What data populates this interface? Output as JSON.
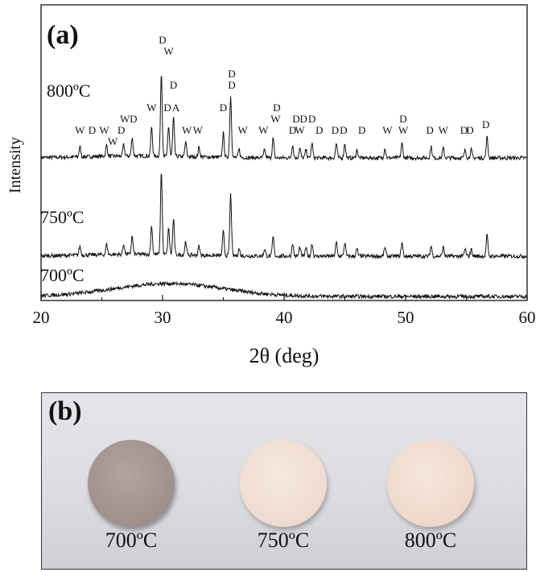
{
  "chart_data": {
    "type": "line",
    "panel_label": "(a)",
    "xlabel": "2θ (deg)",
    "ylabel": "Intensity",
    "xlim": [
      20,
      60
    ],
    "xticks": [
      20,
      30,
      40,
      50,
      60
    ],
    "grid": false,
    "series": [
      {
        "name": "800ºC",
        "peaks": [
          {
            "x": 23.2,
            "h": 0.3
          },
          {
            "x": 25.4,
            "h": 0.35
          },
          {
            "x": 26.8,
            "h": 0.35
          },
          {
            "x": 27.5,
            "h": 0.55
          },
          {
            "x": 29.1,
            "h": 0.9
          },
          {
            "x": 29.9,
            "h": 2.6
          },
          {
            "x": 30.5,
            "h": 0.9
          },
          {
            "x": 30.9,
            "h": 1.2
          },
          {
            "x": 31.9,
            "h": 0.45
          },
          {
            "x": 33.0,
            "h": 0.3
          },
          {
            "x": 35.0,
            "h": 0.75
          },
          {
            "x": 35.6,
            "h": 1.9
          },
          {
            "x": 36.3,
            "h": 0.25
          },
          {
            "x": 38.4,
            "h": 0.25
          },
          {
            "x": 39.1,
            "h": 0.6
          },
          {
            "x": 40.7,
            "h": 0.4
          },
          {
            "x": 41.3,
            "h": 0.3
          },
          {
            "x": 41.8,
            "h": 0.25
          },
          {
            "x": 42.3,
            "h": 0.45
          },
          {
            "x": 44.3,
            "h": 0.45
          },
          {
            "x": 45.0,
            "h": 0.45
          },
          {
            "x": 46.0,
            "h": 0.25
          },
          {
            "x": 48.3,
            "h": 0.3
          },
          {
            "x": 49.7,
            "h": 0.45
          },
          {
            "x": 52.1,
            "h": 0.35
          },
          {
            "x": 53.1,
            "h": 0.3
          },
          {
            "x": 54.9,
            "h": 0.25
          },
          {
            "x": 55.4,
            "h": 0.25
          },
          {
            "x": 56.7,
            "h": 0.65
          }
        ]
      },
      {
        "name": "750ºC",
        "peaks": [
          {
            "x": 23.2,
            "h": 0.28
          },
          {
            "x": 25.4,
            "h": 0.32
          },
          {
            "x": 26.8,
            "h": 0.32
          },
          {
            "x": 27.5,
            "h": 0.55
          },
          {
            "x": 29.1,
            "h": 0.9
          },
          {
            "x": 29.9,
            "h": 2.6
          },
          {
            "x": 30.5,
            "h": 0.8
          },
          {
            "x": 30.9,
            "h": 1.1
          },
          {
            "x": 31.9,
            "h": 0.42
          },
          {
            "x": 33.0,
            "h": 0.28
          },
          {
            "x": 35.0,
            "h": 0.75
          },
          {
            "x": 35.6,
            "h": 1.9
          },
          {
            "x": 36.3,
            "h": 0.22
          },
          {
            "x": 38.4,
            "h": 0.22
          },
          {
            "x": 39.1,
            "h": 0.6
          },
          {
            "x": 40.7,
            "h": 0.4
          },
          {
            "x": 41.3,
            "h": 0.28
          },
          {
            "x": 41.8,
            "h": 0.25
          },
          {
            "x": 42.3,
            "h": 0.4
          },
          {
            "x": 44.3,
            "h": 0.42
          },
          {
            "x": 45.0,
            "h": 0.42
          },
          {
            "x": 46.0,
            "h": 0.22
          },
          {
            "x": 48.3,
            "h": 0.28
          },
          {
            "x": 49.7,
            "h": 0.42
          },
          {
            "x": 52.1,
            "h": 0.32
          },
          {
            "x": 53.1,
            "h": 0.28
          },
          {
            "x": 54.9,
            "h": 0.22
          },
          {
            "x": 55.4,
            "h": 0.22
          },
          {
            "x": 56.7,
            "h": 0.65
          }
        ]
      },
      {
        "name": "700ºC",
        "amorphous_hump": {
          "center": 30.5,
          "width": 4.5,
          "h": 0.4
        }
      }
    ],
    "annotations": [
      {
        "text": "W",
        "x": 23.2,
        "row": 0
      },
      {
        "text": "D",
        "x": 24.2,
        "row": 0
      },
      {
        "text": "W",
        "x": 25.2,
        "row": 0
      },
      {
        "text": "W",
        "x": 25.9,
        "row": -1
      },
      {
        "text": "D",
        "x": 26.6,
        "row": 0
      },
      {
        "text": "W",
        "x": 26.9,
        "row": 1
      },
      {
        "text": "D",
        "x": 27.6,
        "row": 1
      },
      {
        "text": "W",
        "x": 29.1,
        "row": 2
      },
      {
        "text": "D",
        "x": 30.0,
        "row": 8
      },
      {
        "text": "W",
        "x": 30.5,
        "row": 7
      },
      {
        "text": "D",
        "x": 30.9,
        "row": 4
      },
      {
        "text": "D",
        "x": 30.4,
        "row": 2
      },
      {
        "text": "A",
        "x": 31.1,
        "row": 2
      },
      {
        "text": "W",
        "x": 32.0,
        "row": 0
      },
      {
        "text": "W",
        "x": 32.9,
        "row": 0
      },
      {
        "text": "D",
        "x": 35.0,
        "row": 2
      },
      {
        "text": "D",
        "x": 35.7,
        "row": 5
      },
      {
        "text": "D",
        "x": 35.7,
        "row": 4
      },
      {
        "text": "W",
        "x": 36.6,
        "row": 0
      },
      {
        "text": "W",
        "x": 38.3,
        "row": 0
      },
      {
        "text": "D",
        "x": 39.4,
        "row": 2
      },
      {
        "text": "W",
        "x": 39.3,
        "row": 1
      },
      {
        "text": "D",
        "x": 40.7,
        "row": 0
      },
      {
        "text": "W",
        "x": 41.3,
        "row": 0
      },
      {
        "text": "D",
        "x": 41.0,
        "row": 1
      },
      {
        "text": "D",
        "x": 41.6,
        "row": 1
      },
      {
        "text": "D",
        "x": 42.3,
        "row": 1
      },
      {
        "text": "D",
        "x": 42.9,
        "row": 0
      },
      {
        "text": "D",
        "x": 44.2,
        "row": 0
      },
      {
        "text": "D",
        "x": 44.9,
        "row": 0
      },
      {
        "text": "D",
        "x": 46.4,
        "row": 0
      },
      {
        "text": "W",
        "x": 48.5,
        "row": 0
      },
      {
        "text": "W",
        "x": 49.8,
        "row": 0
      },
      {
        "text": "D",
        "x": 49.8,
        "row": 1
      },
      {
        "text": "D",
        "x": 52.0,
        "row": 0
      },
      {
        "text": "W",
        "x": 53.1,
        "row": 0
      },
      {
        "text": "D",
        "x": 54.8,
        "row": 0
      },
      {
        "text": "D",
        "x": 55.3,
        "row": 0
      },
      {
        "text": "D",
        "x": 56.6,
        "row": 0.5
      }
    ]
  },
  "photo": {
    "panel_label": "(b)",
    "discs": [
      {
        "label": "700ºC",
        "color": "#9f908b"
      },
      {
        "label": "750ºC",
        "color": "#efdbd0"
      },
      {
        "label": "800ºC",
        "color": "#eed8ca"
      }
    ]
  }
}
